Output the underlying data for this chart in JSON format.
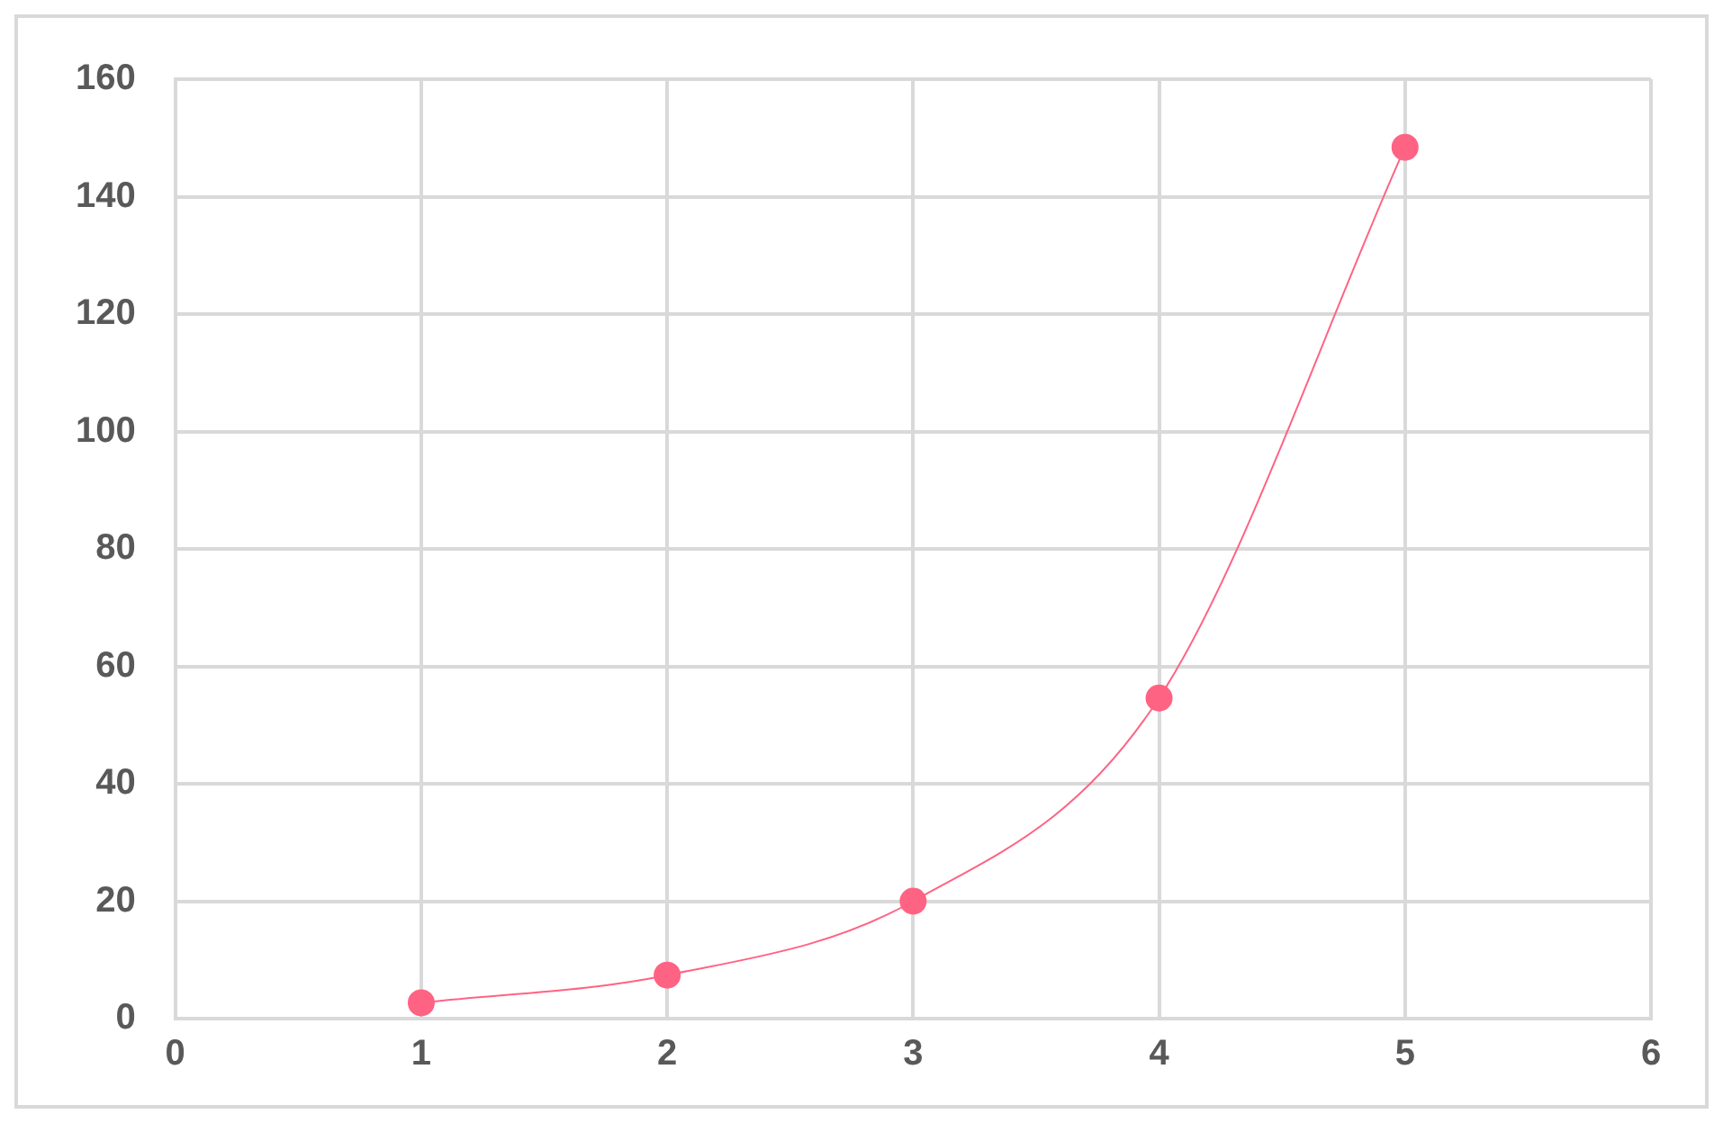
{
  "chart_data": {
    "type": "line",
    "x": [
      1,
      2,
      3,
      4,
      5
    ],
    "series": [
      {
        "color": "#ff6384",
        "values": [
          2.7,
          7.4,
          20,
          54.6,
          148.4
        ]
      }
    ],
    "xlim": [
      0,
      6
    ],
    "xticks": [
      0,
      1,
      2,
      3,
      4,
      5,
      6
    ],
    "ylim": [
      0,
      160
    ],
    "yticks": [
      0,
      20,
      40,
      60,
      80,
      100,
      120,
      140,
      160
    ],
    "grid": true,
    "legend": false,
    "marker": "circle",
    "line_style": "solid"
  }
}
